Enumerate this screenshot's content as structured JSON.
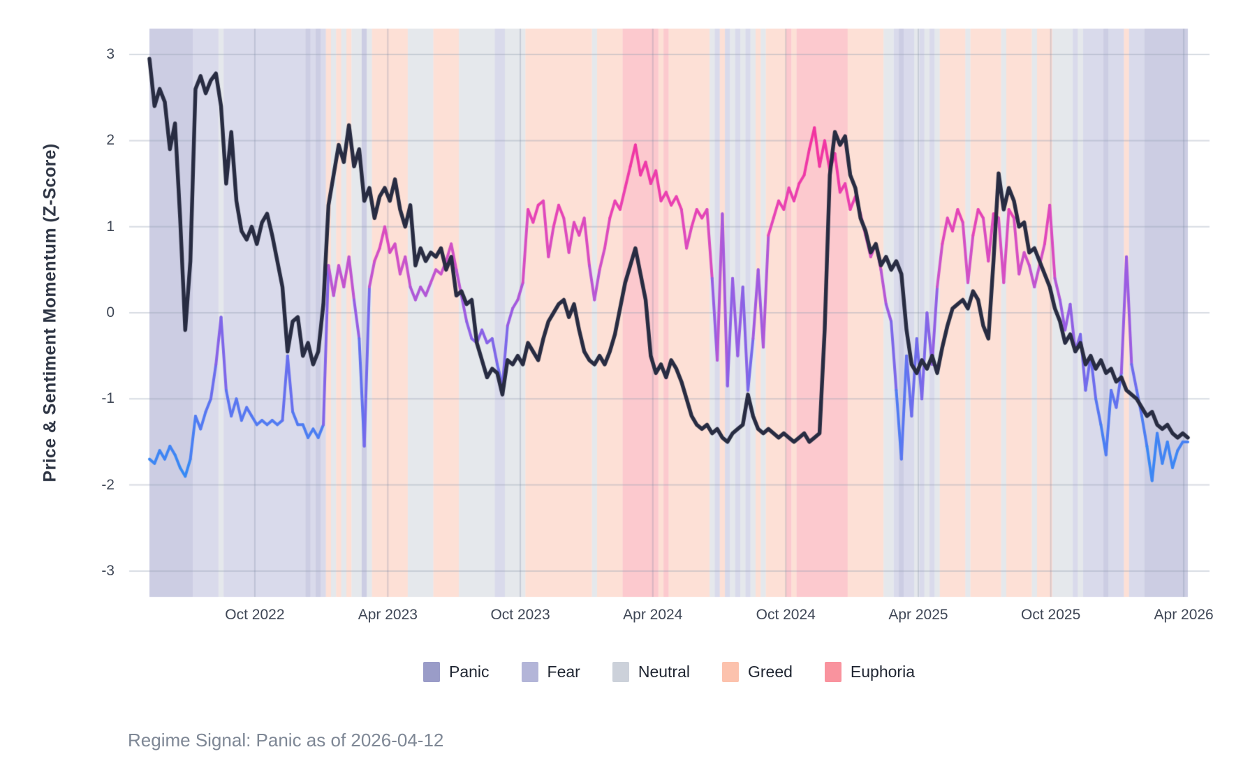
{
  "figure": {
    "y_axis": {
      "title": "Price & Sentiment Momentum (Z-Score)",
      "tick_labels": [
        "3",
        "2",
        "1",
        "0",
        "-1",
        "-2",
        "-3"
      ],
      "tick_values": [
        3,
        2,
        1,
        0,
        -1,
        -2,
        -3
      ]
    },
    "x_axis": {
      "tick_labels": [
        "Oct 2022",
        "Apr 2023",
        "Oct 2023",
        "Apr 2024",
        "Oct 2024",
        "Apr 2025",
        "Oct 2025",
        "Apr 2026"
      ],
      "tick_weeks": [
        20.6,
        46.6,
        72.5,
        98.4,
        124.4,
        150.3,
        176.2,
        202.2
      ]
    },
    "legend": {
      "items": [
        {
          "label": "Panic",
          "color": "#9a9cc8"
        },
        {
          "label": "Fear",
          "color": "#b3b5d8"
        },
        {
          "label": "Neutral",
          "color": "#ccd1da"
        },
        {
          "label": "Greed",
          "color": "#fcc2ad"
        },
        {
          "label": "Euphoria",
          "color": "#f9939e"
        }
      ]
    },
    "caption": "Regime Signal: Panic as of 2026-04-12"
  },
  "chart_data": {
    "type": "line",
    "title": "",
    "xlabel": "",
    "ylabel": "Price & Sentiment Momentum (Z-Score)",
    "ylim": [
      -3.3,
      3.3
    ],
    "grid": true,
    "legend_position": "bottom",
    "x_unit": "weeks, 2022-05 through 2026-04-12",
    "n_points": 204,
    "series": [
      {
        "name": "price_momentum",
        "color": "#282c42",
        "line_width": 5.5,
        "values": [
          2.95,
          2.4,
          2.6,
          2.45,
          1.9,
          2.2,
          1.1,
          -0.2,
          0.6,
          2.6,
          2.75,
          2.55,
          2.7,
          2.78,
          2.4,
          1.5,
          2.1,
          1.3,
          0.95,
          0.85,
          1.0,
          0.8,
          1.05,
          1.15,
          0.9,
          0.6,
          0.3,
          -0.45,
          -0.1,
          -0.05,
          -0.5,
          -0.35,
          -0.6,
          -0.45,
          0.1,
          1.25,
          1.6,
          1.95,
          1.75,
          2.18,
          1.7,
          1.9,
          1.3,
          1.45,
          1.1,
          1.35,
          1.45,
          1.3,
          1.55,
          1.2,
          1.0,
          1.25,
          0.55,
          0.75,
          0.6,
          0.7,
          0.65,
          0.75,
          0.5,
          0.65,
          0.2,
          0.25,
          0.1,
          0.15,
          -0.35,
          -0.55,
          -0.75,
          -0.65,
          -0.7,
          -0.95,
          -0.55,
          -0.6,
          -0.5,
          -0.6,
          -0.35,
          -0.45,
          -0.55,
          -0.3,
          -0.1,
          0.0,
          0.1,
          0.15,
          -0.05,
          0.1,
          -0.2,
          -0.45,
          -0.55,
          -0.6,
          -0.5,
          -0.6,
          -0.45,
          -0.25,
          0.05,
          0.35,
          0.55,
          0.75,
          0.45,
          0.15,
          -0.5,
          -0.7,
          -0.6,
          -0.75,
          -0.55,
          -0.65,
          -0.8,
          -1.0,
          -1.2,
          -1.3,
          -1.35,
          -1.3,
          -1.4,
          -1.35,
          -1.45,
          -1.5,
          -1.4,
          -1.35,
          -1.3,
          -0.95,
          -1.2,
          -1.35,
          -1.4,
          -1.35,
          -1.4,
          -1.45,
          -1.4,
          -1.45,
          -1.5,
          -1.45,
          -1.4,
          -1.5,
          -1.45,
          -1.4,
          -0.2,
          1.6,
          2.1,
          1.95,
          2.05,
          1.6,
          1.45,
          1.1,
          0.95,
          0.7,
          0.8,
          0.55,
          0.65,
          0.5,
          0.6,
          0.45,
          -0.2,
          -0.6,
          -0.7,
          -0.55,
          -0.65,
          -0.5,
          -0.7,
          -0.4,
          -0.15,
          0.05,
          0.1,
          0.15,
          0.05,
          0.25,
          0.15,
          -0.15,
          -0.3,
          0.6,
          1.62,
          1.2,
          1.45,
          1.3,
          1.0,
          1.05,
          0.7,
          0.75,
          0.6,
          0.45,
          0.3,
          0.05,
          -0.1,
          -0.35,
          -0.25,
          -0.45,
          -0.35,
          -0.6,
          -0.5,
          -0.65,
          -0.55,
          -0.7,
          -0.65,
          -0.8,
          -0.75,
          -0.9,
          -0.95,
          -1.0,
          -1.1,
          -1.2,
          -1.15,
          -1.3,
          -1.35,
          -1.3,
          -1.4,
          -1.45,
          -1.4,
          -1.45
        ]
      },
      {
        "name": "sentiment_momentum",
        "line_width": 4,
        "color_scale": [
          [
            -2,
            "#2e8ff6"
          ],
          [
            -1,
            "#5f73f0"
          ],
          [
            0,
            "#9a5ce2"
          ],
          [
            0.6,
            "#cf52c8"
          ],
          [
            1.2,
            "#e843b4"
          ],
          [
            2.2,
            "#f52f9a"
          ]
        ],
        "values": [
          -1.7,
          -1.75,
          -1.6,
          -1.7,
          -1.55,
          -1.65,
          -1.8,
          -1.9,
          -1.7,
          -1.2,
          -1.35,
          -1.15,
          -1.0,
          -0.6,
          -0.05,
          -0.9,
          -1.2,
          -1.0,
          -1.25,
          -1.1,
          -1.2,
          -1.3,
          -1.25,
          -1.3,
          -1.25,
          -1.3,
          -1.25,
          -0.5,
          -1.15,
          -1.3,
          -1.3,
          -1.45,
          -1.35,
          -1.45,
          -1.3,
          0.55,
          0.2,
          0.55,
          0.3,
          0.65,
          0.15,
          -0.3,
          -1.55,
          0.3,
          0.6,
          0.75,
          1.0,
          0.7,
          0.8,
          0.45,
          0.65,
          0.3,
          0.15,
          0.3,
          0.2,
          0.35,
          0.5,
          0.45,
          0.6,
          0.8,
          0.5,
          0.2,
          -0.1,
          -0.3,
          -0.35,
          -0.2,
          -0.35,
          -0.3,
          -0.6,
          -0.85,
          -0.15,
          0.05,
          0.15,
          0.35,
          1.2,
          1.05,
          1.25,
          1.3,
          0.65,
          1.0,
          1.25,
          1.1,
          0.7,
          1.05,
          0.9,
          1.1,
          0.55,
          0.15,
          0.5,
          0.75,
          1.1,
          1.3,
          1.2,
          1.45,
          1.7,
          1.95,
          1.6,
          1.75,
          1.5,
          1.65,
          1.3,
          1.4,
          1.25,
          1.35,
          1.2,
          0.75,
          1.0,
          1.2,
          1.1,
          1.2,
          0.4,
          -0.55,
          1.15,
          -0.85,
          0.4,
          -0.5,
          0.3,
          -0.9,
          -0.3,
          0.5,
          -0.4,
          0.9,
          1.1,
          1.3,
          1.2,
          1.45,
          1.3,
          1.5,
          1.6,
          1.9,
          2.15,
          1.7,
          2.0,
          1.65,
          1.85,
          1.4,
          1.5,
          1.2,
          1.35,
          1.15,
          0.9,
          0.65,
          0.8,
          0.5,
          0.1,
          -0.1,
          -0.9,
          -1.7,
          -0.5,
          -1.2,
          -0.3,
          -1.0,
          0.0,
          -0.6,
          0.3,
          0.8,
          1.1,
          0.95,
          1.2,
          1.05,
          0.35,
          0.9,
          1.2,
          1.1,
          0.6,
          1.15,
          1.1,
          0.35,
          1.2,
          1.1,
          0.45,
          0.7,
          0.55,
          0.3,
          0.55,
          0.8,
          1.25,
          0.4,
          0.15,
          -0.2,
          0.1,
          -0.45,
          -0.25,
          -0.9,
          -0.5,
          -1.0,
          -1.3,
          -1.65,
          -0.9,
          -1.1,
          -0.7,
          0.65,
          -0.6,
          -0.9,
          -1.2,
          -1.55,
          -1.95,
          -1.4,
          -1.75,
          -1.5,
          -1.8,
          -1.6,
          -1.5,
          -1.5
        ]
      }
    ],
    "regime_bands": {
      "derived_from": "sentiment_momentum",
      "alpha": 0.5,
      "thresholds": {
        "euphoria_min": 1.4,
        "greed_min": 0.45,
        "neutral_min": -0.45,
        "fear_min": -1.4
      },
      "colors": {
        "panic": "#9a9cc8",
        "fear": "#b3b5d8",
        "neutral": "#ccd1da",
        "greed": "#fcc2ad",
        "euphoria": "#f9939e"
      }
    }
  }
}
